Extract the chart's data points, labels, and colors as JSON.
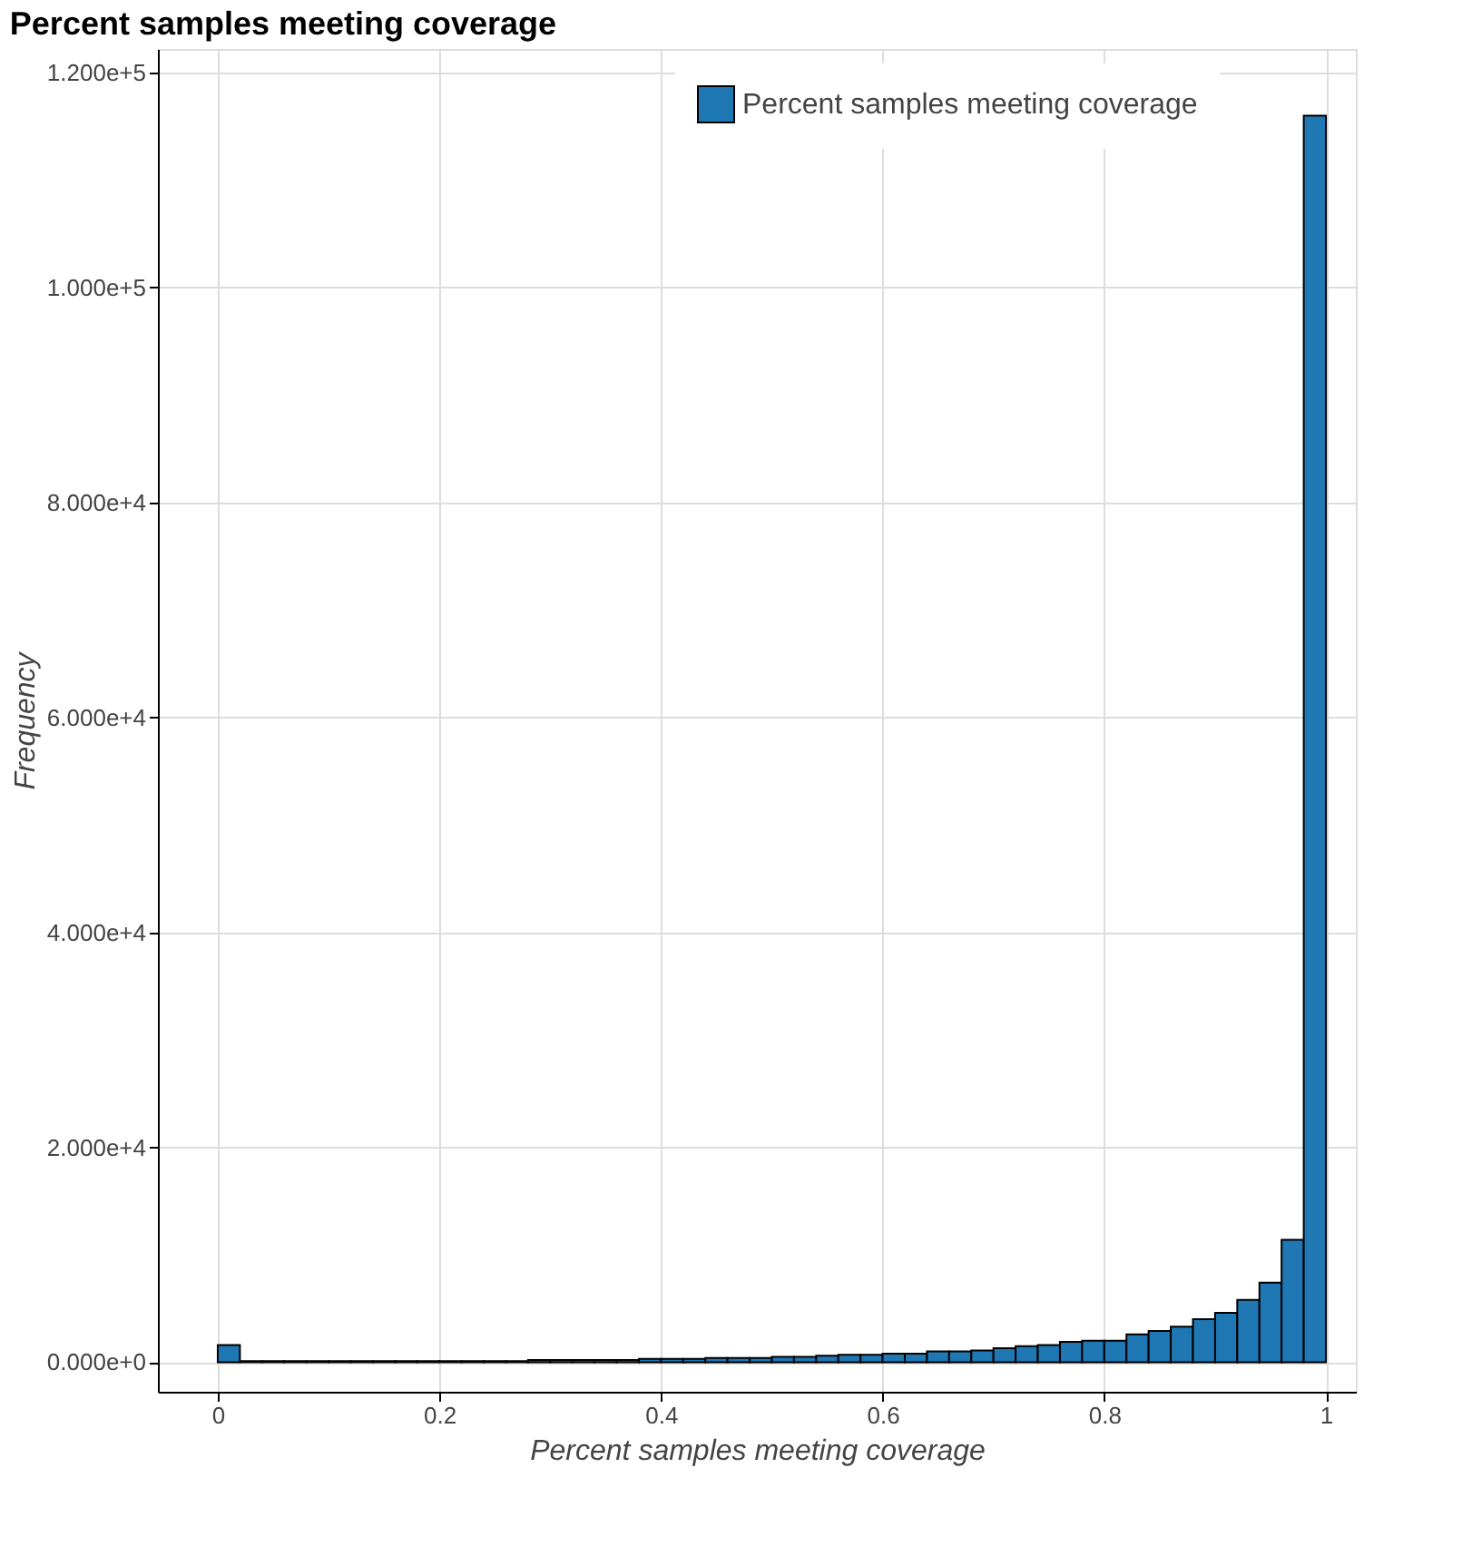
{
  "chart_data": {
    "type": "histogram",
    "title": "Percent samples meeting coverage",
    "xlabel": "Percent samples meeting coverage",
    "ylabel": "Frequency",
    "bins": [
      0,
      0.02,
      0.04,
      0.06,
      0.08,
      0.1,
      0.12,
      0.14,
      0.16,
      0.18,
      0.2,
      0.22,
      0.24,
      0.26,
      0.28,
      0.3,
      0.32,
      0.34,
      0.36,
      0.38,
      0.4,
      0.42,
      0.44,
      0.46,
      0.48,
      0.5,
      0.52,
      0.54,
      0.56,
      0.58,
      0.6,
      0.62,
      0.64,
      0.66,
      0.68,
      0.7,
      0.72,
      0.74,
      0.76,
      0.78,
      0.8,
      0.82,
      0.84,
      0.86,
      0.88,
      0.9,
      0.92,
      0.94,
      0.96,
      0.98,
      1
    ],
    "series": [
      {
        "name": "Percent samples meeting coverage",
        "color": "#1f77b4",
        "values": [
          1600,
          100,
          100,
          100,
          100,
          100,
          100,
          100,
          100,
          100,
          100,
          100,
          100,
          100,
          200,
          200,
          200,
          200,
          200,
          300,
          300,
          300,
          400,
          400,
          400,
          500,
          500,
          600,
          700,
          700,
          800,
          800,
          1000,
          1000,
          1100,
          1300,
          1500,
          1600,
          1900,
          2000,
          2000,
          2600,
          2900,
          3300,
          4000,
          4600,
          5800,
          7400,
          11400,
          116000
        ]
      }
    ],
    "xlim": [
      -0.054,
      1.027
    ],
    "xticks": [
      0,
      0.2,
      0.4,
      0.6,
      0.8,
      1
    ],
    "ylim": [
      -2750,
      122200
    ],
    "yticks": [
      {
        "value": 0,
        "label": "0.000e+0"
      },
      {
        "value": 20000,
        "label": "2.000e+4"
      },
      {
        "value": 40000,
        "label": "4.000e+4"
      },
      {
        "value": 60000,
        "label": "6.000e+4"
      },
      {
        "value": 80000,
        "label": "8.000e+4"
      },
      {
        "value": 100000,
        "label": "1.000e+5"
      },
      {
        "value": 120000,
        "label": "1.200e+5"
      }
    ],
    "grid": true,
    "legend": "top right"
  }
}
